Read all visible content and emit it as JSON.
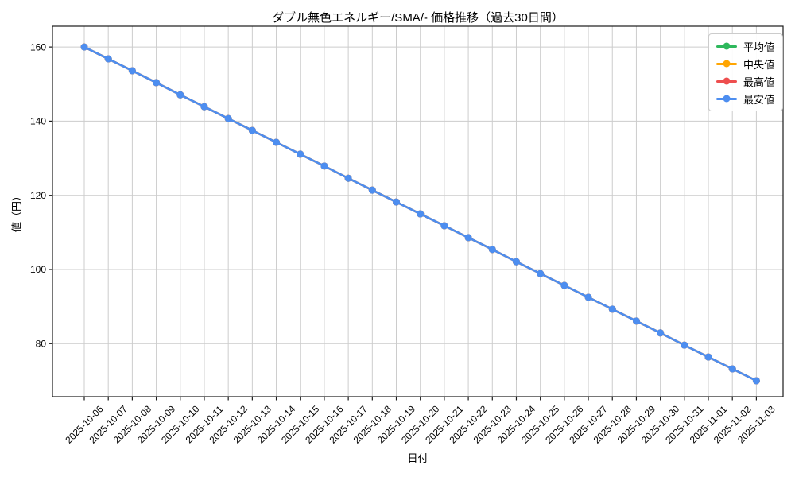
{
  "chart_data": {
    "type": "line",
    "title": "ダブル無色エネルギー/SMA/- 価格推移（過去30日間）",
    "xlabel": "日付",
    "ylabel": "値（円）",
    "grid": true,
    "legend_position": "upper right",
    "ylim": [
      65.7,
      165.6
    ],
    "yticks": [
      80,
      100,
      120,
      140,
      160
    ],
    "x": [
      "2025-10-06",
      "2025-10-07",
      "2025-10-08",
      "2025-10-09",
      "2025-10-10",
      "2025-10-11",
      "2025-10-12",
      "2025-10-13",
      "2025-10-14",
      "2025-10-15",
      "2025-10-16",
      "2025-10-17",
      "2025-10-18",
      "2025-10-19",
      "2025-10-20",
      "2025-10-21",
      "2025-10-22",
      "2025-10-23",
      "2025-10-24",
      "2025-10-25",
      "2025-10-26",
      "2025-10-27",
      "2025-10-28",
      "2025-10-29",
      "2025-10-30",
      "2025-10-31",
      "2025-11-01",
      "2025-11-02",
      "2025-11-03"
    ],
    "series": [
      {
        "name": "平均値",
        "color": "#2eb85c",
        "values": [
          160.0,
          156.8,
          153.6,
          150.4,
          147.1,
          143.9,
          140.7,
          137.5,
          134.3,
          131.1,
          127.9,
          124.6,
          121.4,
          118.2,
          115.0,
          111.8,
          108.6,
          105.4,
          102.1,
          98.9,
          95.7,
          92.5,
          89.3,
          86.1,
          82.9,
          79.6,
          76.4,
          73.2,
          70.0
        ]
      },
      {
        "name": "中央値",
        "color": "#ffa502",
        "values": [
          160.0,
          156.8,
          153.6,
          150.4,
          147.1,
          143.9,
          140.7,
          137.5,
          134.3,
          131.1,
          127.9,
          124.6,
          121.4,
          118.2,
          115.0,
          111.8,
          108.6,
          105.4,
          102.1,
          98.9,
          95.7,
          92.5,
          89.3,
          86.1,
          82.9,
          79.6,
          76.4,
          73.2,
          70.0
        ]
      },
      {
        "name": "最高値",
        "color": "#ee4e4e",
        "values": [
          160.0,
          156.8,
          153.6,
          150.4,
          147.1,
          143.9,
          140.7,
          137.5,
          134.3,
          131.1,
          127.9,
          124.6,
          121.4,
          118.2,
          115.0,
          111.8,
          108.6,
          105.4,
          102.1,
          98.9,
          95.7,
          92.5,
          89.3,
          86.1,
          82.9,
          79.6,
          76.4,
          73.2,
          70.0
        ]
      },
      {
        "name": "最安値",
        "color": "#4d8ef0",
        "values": [
          160.0,
          156.8,
          153.6,
          150.4,
          147.1,
          143.9,
          140.7,
          137.5,
          134.3,
          131.1,
          127.9,
          124.6,
          121.4,
          118.2,
          115.0,
          111.8,
          108.6,
          105.4,
          102.1,
          98.9,
          95.7,
          92.5,
          89.3,
          86.1,
          82.9,
          79.6,
          76.4,
          73.2,
          70.0
        ]
      }
    ]
  }
}
